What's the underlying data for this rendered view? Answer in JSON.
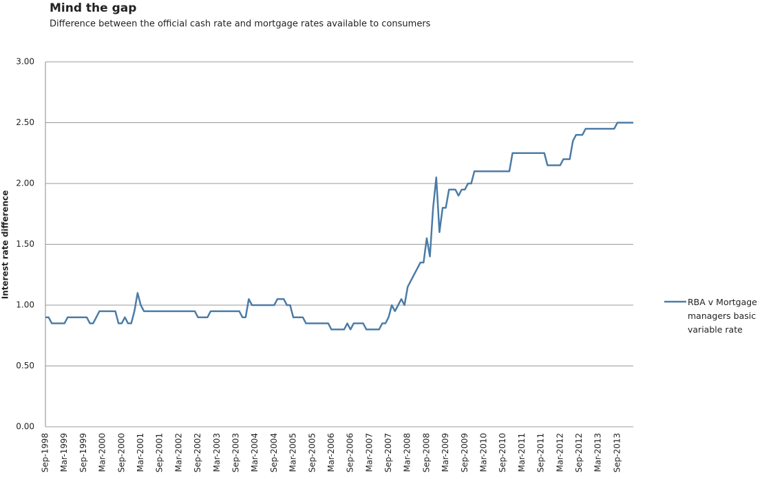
{
  "chart_data": {
    "type": "line",
    "title": "Mind the gap",
    "subtitle": "Difference between the official cash rate and mortgage rates available to consumers",
    "y_label": "Interest rate difference",
    "legend": "right",
    "grid": true,
    "ylim": [
      0,
      3
    ],
    "yticks": [
      {
        "value": 0,
        "label": "0.00"
      },
      {
        "value": 0.5,
        "label": "0.50"
      },
      {
        "value": 1,
        "label": "1.00"
      },
      {
        "value": 1.5,
        "label": "1.50"
      },
      {
        "value": 2,
        "label": "2.00"
      },
      {
        "value": 2.5,
        "label": "2.50"
      },
      {
        "value": 3,
        "label": "3.00"
      }
    ],
    "categories": [
      "Sep-1998",
      null,
      null,
      null,
      null,
      null,
      "Mar-1999",
      null,
      null,
      null,
      null,
      null,
      "Sep-1999",
      null,
      null,
      null,
      null,
      null,
      "Mar-2000",
      null,
      null,
      null,
      null,
      null,
      "Sep-2000",
      null,
      null,
      null,
      null,
      null,
      "Mar-2001",
      null,
      null,
      null,
      null,
      null,
      "Sep-2001",
      null,
      null,
      null,
      null,
      null,
      "Mar-2002",
      null,
      null,
      null,
      null,
      null,
      "Sep-2002",
      null,
      null,
      null,
      null,
      null,
      "Mar-2003",
      null,
      null,
      null,
      null,
      null,
      "Sep-2003",
      null,
      null,
      null,
      null,
      null,
      "Mar-2004",
      null,
      null,
      null,
      null,
      null,
      "Sep-2004",
      null,
      null,
      null,
      null,
      null,
      "Mar-2005",
      null,
      null,
      null,
      null,
      null,
      "Sep-2005",
      null,
      null,
      null,
      null,
      null,
      "Mar-2006",
      null,
      null,
      null,
      null,
      null,
      "Sep-2006",
      null,
      null,
      null,
      null,
      null,
      "Mar-2007",
      null,
      null,
      null,
      null,
      null,
      "Sep-2007",
      null,
      null,
      null,
      null,
      null,
      "Mar-2008",
      null,
      null,
      null,
      null,
      null,
      "Sep-2008",
      null,
      null,
      null,
      null,
      null,
      "Mar-2009",
      null,
      null,
      null,
      null,
      null,
      "Sep-2009",
      null,
      null,
      null,
      null,
      null,
      "Mar-2010",
      null,
      null,
      null,
      null,
      null,
      "Sep-2010",
      null,
      null,
      null,
      null,
      null,
      "Mar-2011",
      null,
      null,
      null,
      null,
      null,
      "Sep-2011",
      null,
      null,
      null,
      null,
      null,
      "Mar-2012",
      null,
      null,
      null,
      null,
      null,
      "Sep-2012",
      null,
      null,
      null,
      null,
      null,
      "Mar-2013",
      null,
      null,
      null,
      null,
      null,
      "Sep-2013",
      null,
      null,
      null,
      null,
      null
    ],
    "series": [
      {
        "name": "RBA v Mortgage managers basic variable rate",
        "color": "#4a7ba7",
        "values": [
          0.9,
          0.9,
          0.85,
          0.85,
          0.85,
          0.85,
          0.85,
          0.9,
          0.9,
          0.9,
          0.9,
          0.9,
          0.9,
          0.9,
          0.85,
          0.85,
          0.9,
          0.95,
          0.95,
          0.95,
          0.95,
          0.95,
          0.95,
          0.85,
          0.85,
          0.9,
          0.85,
          0.85,
          0.95,
          1.1,
          1.0,
          0.95,
          0.95,
          0.95,
          0.95,
          0.95,
          0.95,
          0.95,
          0.95,
          0.95,
          0.95,
          0.95,
          0.95,
          0.95,
          0.95,
          0.95,
          0.95,
          0.95,
          0.9,
          0.9,
          0.9,
          0.9,
          0.95,
          0.95,
          0.95,
          0.95,
          0.95,
          0.95,
          0.95,
          0.95,
          0.95,
          0.95,
          0.9,
          0.9,
          1.05,
          1.0,
          1.0,
          1.0,
          1.0,
          1.0,
          1.0,
          1.0,
          1.0,
          1.05,
          1.05,
          1.05,
          1.0,
          1.0,
          0.9,
          0.9,
          0.9,
          0.9,
          0.85,
          0.85,
          0.85,
          0.85,
          0.85,
          0.85,
          0.85,
          0.85,
          0.8,
          0.8,
          0.8,
          0.8,
          0.8,
          0.85,
          0.8,
          0.85,
          0.85,
          0.85,
          0.85,
          0.8,
          0.8,
          0.8,
          0.8,
          0.8,
          0.85,
          0.85,
          0.9,
          1.0,
          0.95,
          1.0,
          1.05,
          1.0,
          1.15,
          1.2,
          1.25,
          1.3,
          1.35,
          1.35,
          1.55,
          1.4,
          1.8,
          2.05,
          1.6,
          1.8,
          1.8,
          1.95,
          1.95,
          1.95,
          1.9,
          1.95,
          1.95,
          2.0,
          2.0,
          2.1,
          2.1,
          2.1,
          2.1,
          2.1,
          2.1,
          2.1,
          2.1,
          2.1,
          2.1,
          2.1,
          2.1,
          2.25,
          2.25,
          2.25,
          2.25,
          2.25,
          2.25,
          2.25,
          2.25,
          2.25,
          2.25,
          2.25,
          2.15,
          2.15,
          2.15,
          2.15,
          2.15,
          2.2,
          2.2,
          2.2,
          2.35,
          2.4,
          2.4,
          2.4,
          2.45,
          2.45,
          2.45,
          2.45,
          2.45,
          2.45,
          2.45,
          2.45,
          2.45,
          2.45,
          2.5,
          2.5,
          2.5,
          2.5,
          2.5,
          2.5
        ]
      }
    ]
  }
}
